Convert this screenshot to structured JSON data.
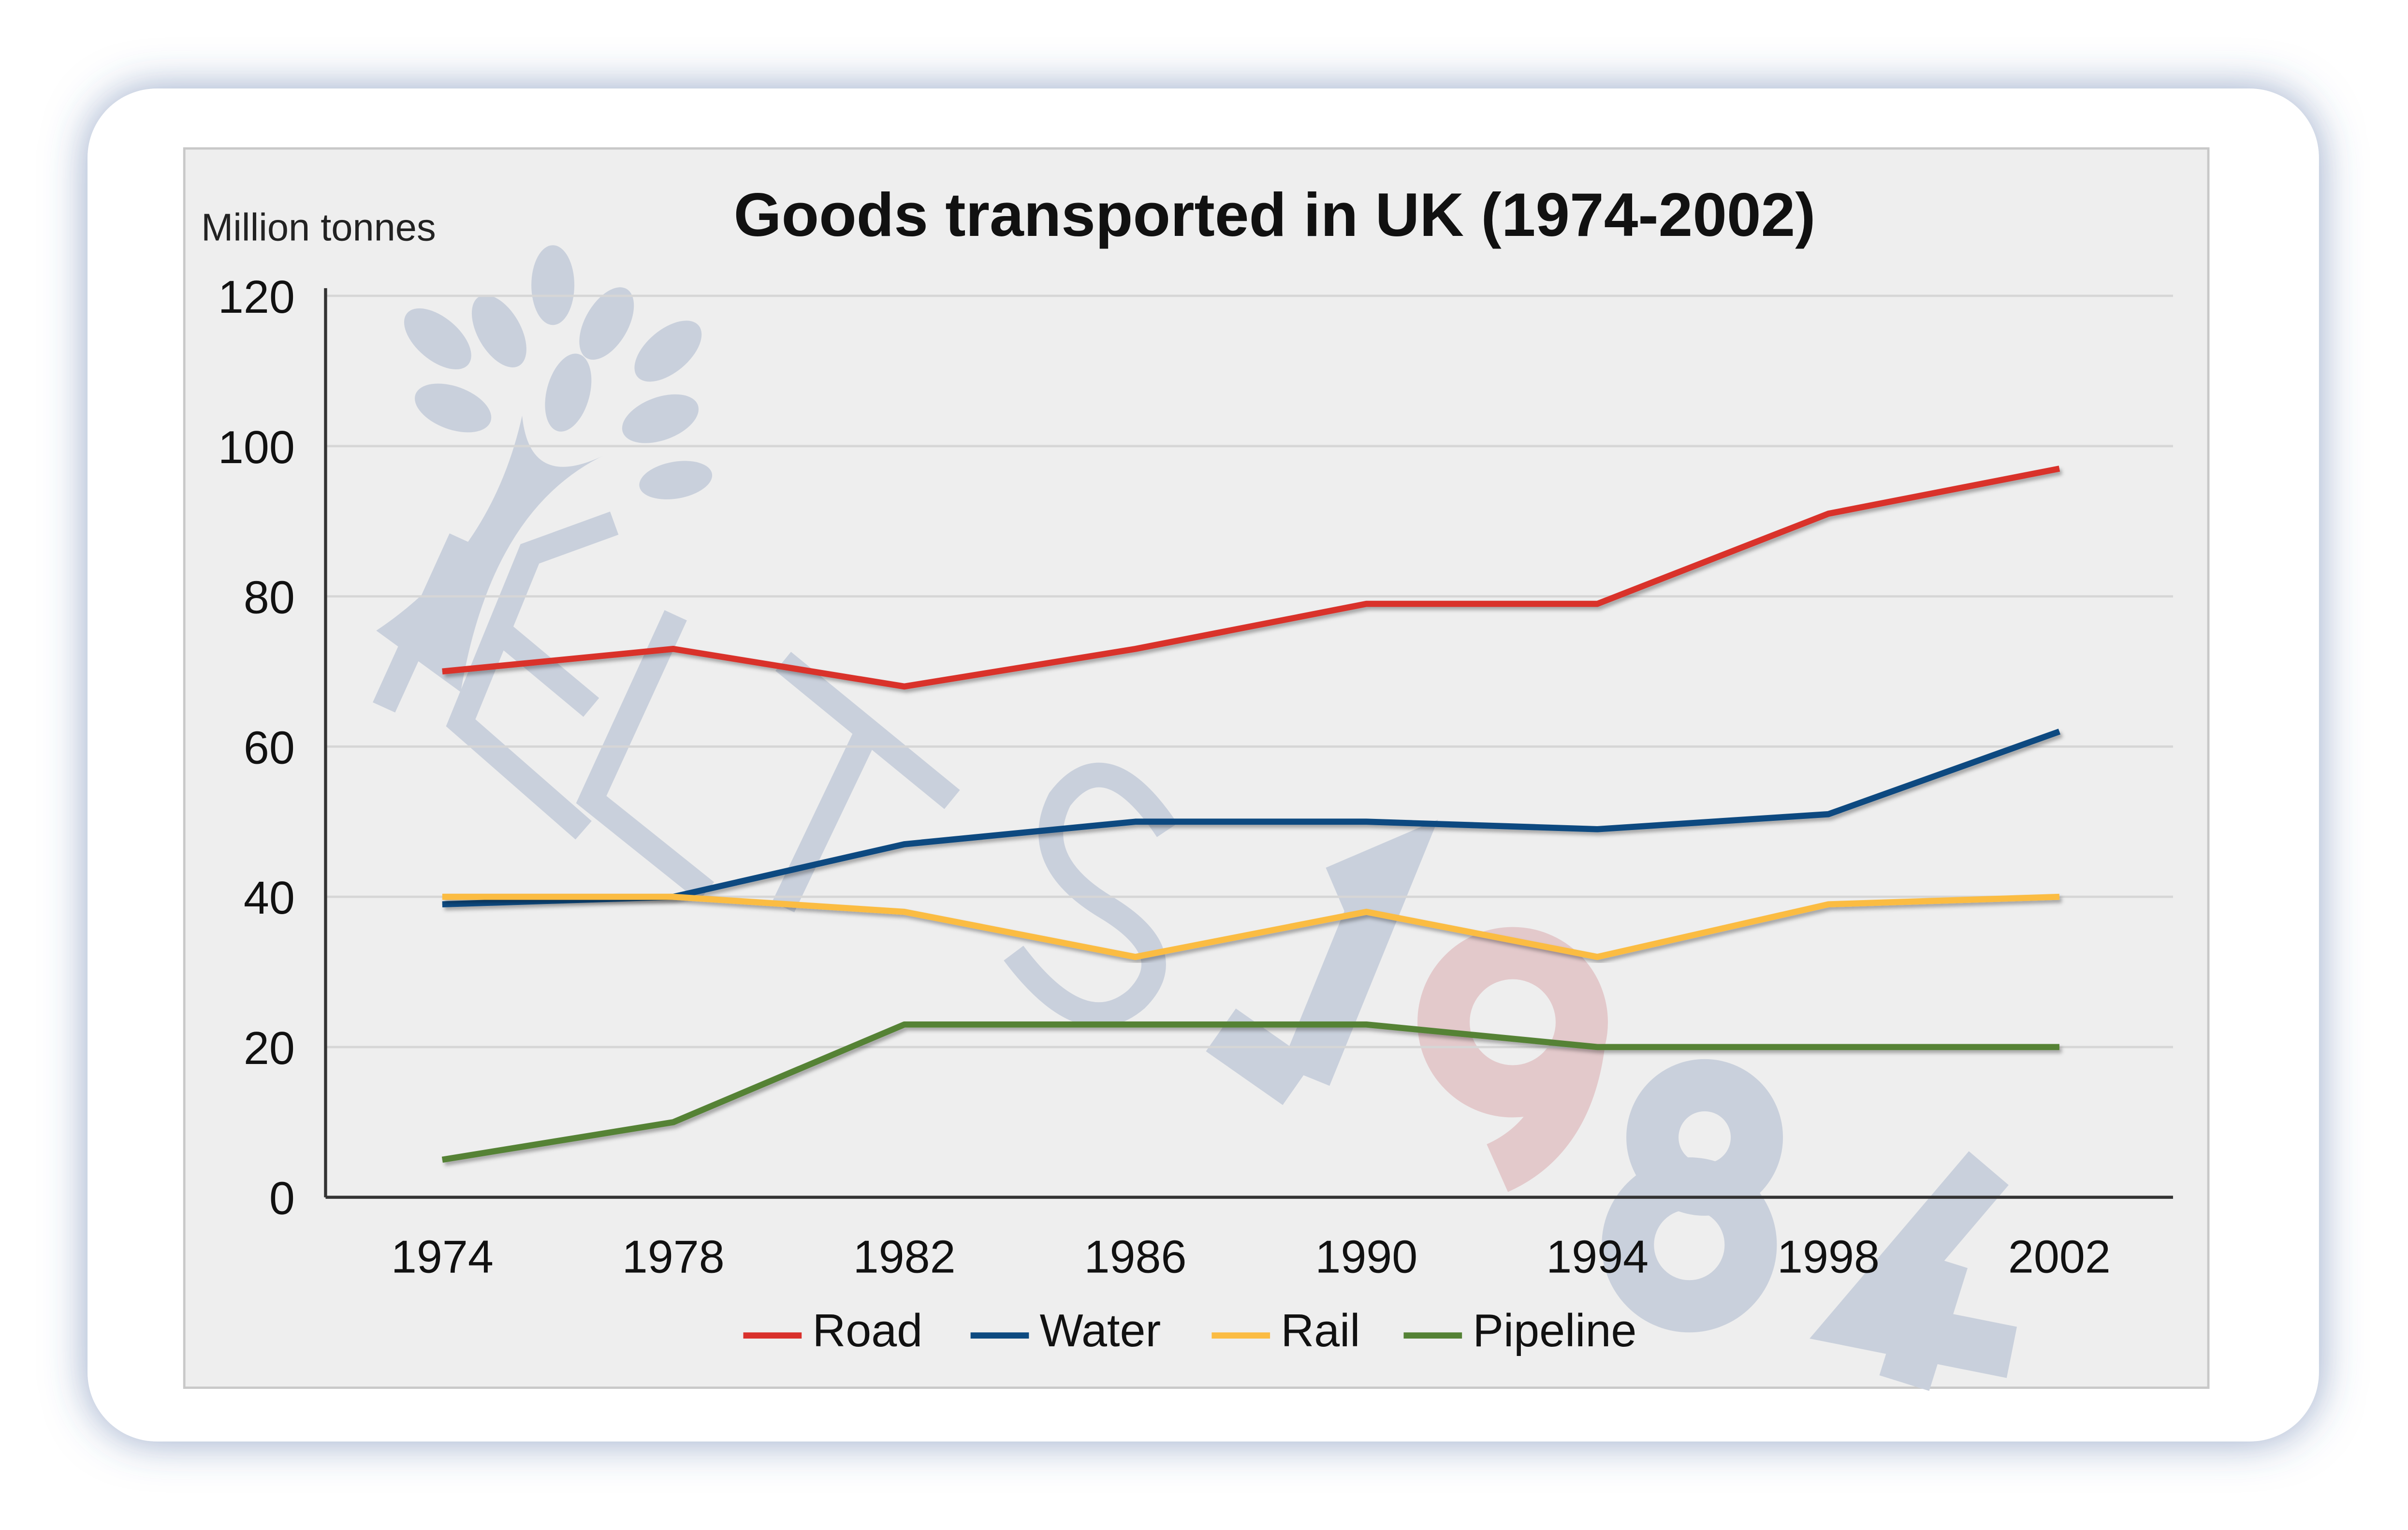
{
  "chart_data": {
    "type": "line",
    "title": "Goods transported in UK (1974-2002)",
    "ylabel": "Million tonnes",
    "xlabel": "",
    "categories": [
      "1974",
      "1978",
      "1982",
      "1986",
      "1990",
      "1994",
      "1998",
      "2002"
    ],
    "ylim": [
      0,
      120
    ],
    "yticks": [
      "0",
      "20",
      "40",
      "60",
      "80",
      "100",
      "120"
    ],
    "grid": true,
    "legend_position": "bottom",
    "series": [
      {
        "name": "Road",
        "color": "#d9302c",
        "values": [
          70,
          73,
          68,
          73,
          79,
          79,
          91,
          97
        ]
      },
      {
        "name": "Water",
        "color": "#0d4a80",
        "values": [
          39,
          40,
          47,
          50,
          50,
          49,
          51,
          62
        ]
      },
      {
        "name": "Rail",
        "color": "#fbbc43",
        "values": [
          40,
          40,
          38,
          32,
          38,
          32,
          39,
          40
        ]
      },
      {
        "name": "Pipeline",
        "color": "#548235",
        "values": [
          5,
          10,
          23,
          23,
          23,
          20,
          20,
          20
        ]
      }
    ]
  },
  "watermark": {
    "text": "IELTS 1984"
  }
}
